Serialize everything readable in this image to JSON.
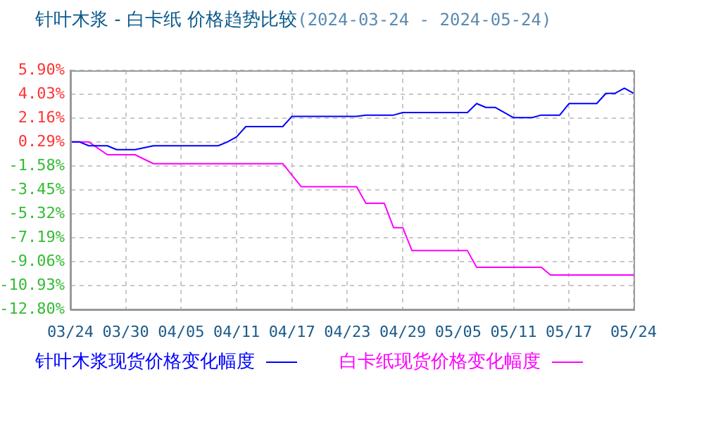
{
  "chart_data": {
    "type": "line",
    "title": "针叶木浆 - 白卡纸 价格趋势比较",
    "subtitle": "(2024-03-24 - 2024-05-24)",
    "xlim": [
      "2024-03-24",
      "2024-05-24"
    ],
    "xticks": [
      {
        "value": "2024-03-24",
        "label": "03/24"
      },
      {
        "value": "2024-03-30",
        "label": "03/30"
      },
      {
        "value": "2024-04-05",
        "label": "04/05"
      },
      {
        "value": "2024-04-11",
        "label": "04/11"
      },
      {
        "value": "2024-04-17",
        "label": "04/17"
      },
      {
        "value": "2024-04-23",
        "label": "04/23"
      },
      {
        "value": "2024-04-29",
        "label": "04/29"
      },
      {
        "value": "2024-05-05",
        "label": "05/05"
      },
      {
        "value": "2024-05-11",
        "label": "05/11"
      },
      {
        "value": "2024-05-17",
        "label": "05/17"
      },
      {
        "value": "2024-05-24",
        "label": "05/24"
      }
    ],
    "ylim": [
      -12.8,
      5.9
    ],
    "yticks": [
      {
        "value": 5.9,
        "label": "5.90%"
      },
      {
        "value": 4.03,
        "label": "4.03%"
      },
      {
        "value": 2.16,
        "label": "2.16%"
      },
      {
        "value": 0.29,
        "label": "0.29%"
      },
      {
        "value": -1.58,
        "label": "-1.58%"
      },
      {
        "value": -3.45,
        "label": "-3.45%"
      },
      {
        "value": -5.32,
        "label": "-5.32%"
      },
      {
        "value": -7.19,
        "label": "-7.19%"
      },
      {
        "value": -9.06,
        "label": "-9.06%"
      },
      {
        "value": -10.93,
        "label": "-10.93%"
      },
      {
        "value": -12.8,
        "label": "-12.80%"
      }
    ],
    "grid": true,
    "legend": "bottom",
    "marker": "none",
    "series": [
      {
        "name": "针叶木浆现货价格变化幅度",
        "color": "#0000ff",
        "x": [
          "2024-03-24",
          "2024-03-25",
          "2024-03-26",
          "2024-03-28",
          "2024-03-29",
          "2024-03-31",
          "2024-04-02",
          "2024-04-09",
          "2024-04-10",
          "2024-04-11",
          "2024-04-12",
          "2024-04-16",
          "2024-04-17",
          "2024-04-24",
          "2024-04-25",
          "2024-04-28",
          "2024-04-29",
          "2024-05-06",
          "2024-05-07",
          "2024-05-08",
          "2024-05-09",
          "2024-05-11",
          "2024-05-13",
          "2024-05-14",
          "2024-05-16",
          "2024-05-17",
          "2024-05-20",
          "2024-05-21",
          "2024-05-22",
          "2024-05-23",
          "2024-05-24"
        ],
        "values": [
          0.3,
          0.3,
          0,
          0,
          -0.3,
          -0.3,
          0,
          0,
          0.3,
          0.7,
          1.5,
          1.5,
          2.3,
          2.3,
          2.4,
          2.4,
          2.6,
          2.6,
          3.3,
          3,
          3,
          2.2,
          2.2,
          2.4,
          2.4,
          3.3,
          3.3,
          4.1,
          4.1,
          4.5,
          4.1
        ]
      },
      {
        "name": "白卡纸现货价格变化幅度",
        "color": "#ff00ff",
        "x": [
          "2024-03-24",
          "2024-03-26",
          "2024-03-28",
          "2024-03-31",
          "2024-04-02",
          "2024-04-16",
          "2024-04-18",
          "2024-04-24",
          "2024-04-25",
          "2024-04-27",
          "2024-04-28",
          "2024-04-29",
          "2024-04-30",
          "2024-05-06",
          "2024-05-07",
          "2024-05-14",
          "2024-05-15",
          "2024-05-24"
        ],
        "values": [
          0.3,
          0.3,
          -0.7,
          -0.7,
          -1.4,
          -1.4,
          -3.2,
          -3.2,
          -4.5,
          -4.5,
          -6.4,
          -6.4,
          -8.2,
          -8.2,
          -9.5,
          -9.5,
          -10.1,
          -10.1
        ]
      }
    ]
  }
}
